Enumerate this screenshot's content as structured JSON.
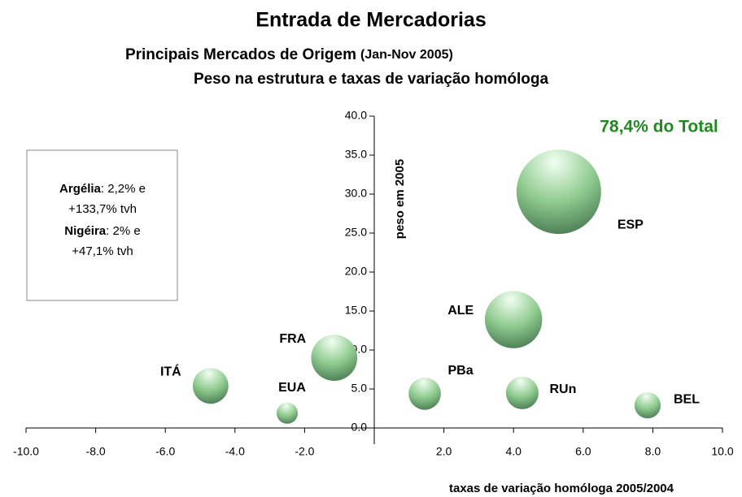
{
  "chart_data": {
    "type": "bubble",
    "title": "Entrada de Mercadorias",
    "subtitle": "Principais Mercados de Origem",
    "subtitle_period": "(Jan-Nov 2005)",
    "subtitle2": "Peso na estrutura e taxas de variação homóloga",
    "x_label": "taxas de variação homóloga 2005/2004",
    "y_label": "peso em 2005",
    "annotation_total": "78,4% do Total",
    "annotation_box": [
      {
        "bold": "Argélia",
        "text": ": 2,2% e"
      },
      {
        "text": "+133,7% tvh"
      },
      {
        "bold": "Nigéira",
        "text": ": 2% e"
      },
      {
        "text": "+47,1% tvh"
      }
    ],
    "categories": [
      "ESP",
      "ALE",
      "FRA",
      "ITÁ",
      "EUA",
      "PBa",
      "RUn",
      "BEL"
    ],
    "x": [
      5.3,
      4.0,
      -1.15,
      -4.7,
      -2.5,
      1.45,
      4.25,
      7.85
    ],
    "values": [
      30.3,
      13.9,
      9.0,
      5.4,
      1.9,
      4.4,
      4.5,
      2.9
    ],
    "sizes": [
      30.3,
      13.9,
      9.0,
      5.4,
      1.9,
      4.4,
      4.5,
      2.9
    ],
    "color": "#8fcb8f",
    "xlim": [
      -10,
      10
    ],
    "ylim": [
      0,
      40
    ],
    "xticks": [
      {
        "value": -10,
        "label": "-10.0"
      },
      {
        "value": -8,
        "label": "-8.0"
      },
      {
        "value": -6,
        "label": "-6.0"
      },
      {
        "value": -4,
        "label": "-4.0"
      },
      {
        "value": -2,
        "label": "-2.0"
      },
      {
        "value": 2,
        "label": "2.0"
      },
      {
        "value": 4,
        "label": "4.0"
      },
      {
        "value": 6,
        "label": "6.0"
      },
      {
        "value": 8,
        "label": "8.0"
      },
      {
        "value": 10,
        "label": "10.0"
      }
    ],
    "yticks": [
      {
        "value": 0,
        "label": "0.0"
      },
      {
        "value": 5,
        "label": "5.0"
      },
      {
        "value": 10,
        "label": "10.0"
      },
      {
        "value": 15,
        "label": "15.0"
      },
      {
        "value": 20,
        "label": "20.0"
      },
      {
        "value": 25,
        "label": "25.0"
      },
      {
        "value": 30,
        "label": "30.0"
      },
      {
        "value": 35,
        "label": "35.0"
      },
      {
        "value": 40,
        "label": "40.0"
      }
    ]
  }
}
